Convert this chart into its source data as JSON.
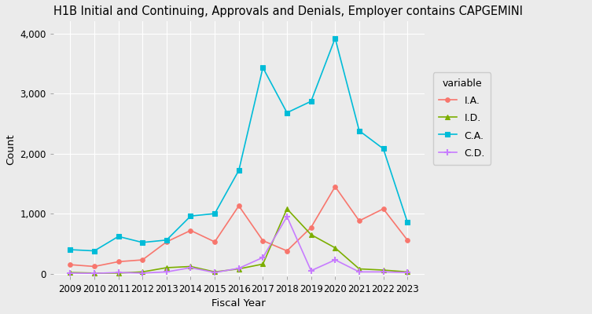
{
  "title": "H1B Initial and Continuing, Approvals and Denials, Employer contains CAPGEMINI",
  "xlabel": "Fiscal Year",
  "ylabel": "Count",
  "legend_title": "variable",
  "years": [
    2009,
    2010,
    2011,
    2012,
    2013,
    2014,
    2015,
    2016,
    2017,
    2018,
    2019,
    2020,
    2021,
    2022,
    2023
  ],
  "series": {
    "I.A.": {
      "values": [
        150,
        120,
        200,
        230,
        530,
        720,
        530,
        1130,
        550,
        380,
        770,
        1450,
        880,
        1080,
        560
      ],
      "color": "#F8766D",
      "marker": "o",
      "linestyle": "-",
      "markersize": 4
    },
    "I.D.": {
      "values": [
        20,
        10,
        10,
        30,
        100,
        120,
        30,
        80,
        160,
        1080,
        650,
        430,
        80,
        60,
        30
      ],
      "color": "#7CAE00",
      "marker": "^",
      "linestyle": "-",
      "markersize": 4
    },
    "C.A.": {
      "values": [
        400,
        380,
        620,
        520,
        560,
        960,
        1000,
        1720,
        3430,
        2680,
        2870,
        3920,
        2380,
        2080,
        860
      ],
      "color": "#00BCD8",
      "marker": "s",
      "linestyle": "-",
      "markersize": 4
    },
    "C.D.": {
      "values": [
        10,
        5,
        20,
        10,
        30,
        100,
        20,
        90,
        270,
        950,
        50,
        230,
        30,
        30,
        20
      ],
      "color": "#C77CFF",
      "marker": "+",
      "linestyle": "-",
      "markersize": 6
    }
  },
  "ylim": [
    -50,
    4200
  ],
  "yticks": [
    0,
    1000,
    2000,
    3000,
    4000
  ],
  "ytick_labels": [
    "0",
    "1,000",
    "2,000",
    "3,000",
    "4,000"
  ],
  "background_color": "#EBEBEB",
  "plot_bg_color": "#EBEBEB",
  "grid_color": "#FFFFFF",
  "title_fontsize": 10.5,
  "axis_label_fontsize": 9.5,
  "tick_fontsize": 8.5,
  "legend_title_fontsize": 9,
  "legend_fontsize": 9
}
